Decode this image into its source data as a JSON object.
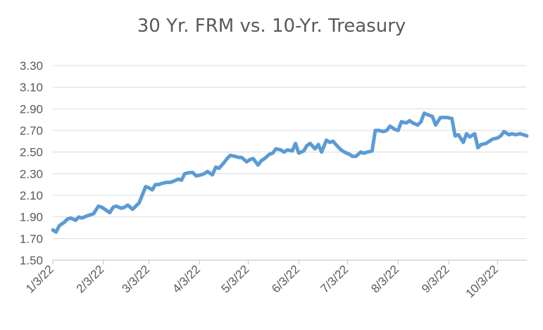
{
  "chart_data": {
    "type": "line",
    "title": "30 Yr. FRM vs. 10-Yr. Treasury",
    "xlabel": "",
    "ylabel": "",
    "ylim": [
      1.5,
      3.3
    ],
    "ytick_step": 0.2,
    "y_ticks": [
      "1.50",
      "1.70",
      "1.90",
      "2.10",
      "2.30",
      "2.50",
      "2.70",
      "2.90",
      "3.10",
      "3.30"
    ],
    "x_ticks": [
      "1/3/22",
      "2/3/22",
      "3/3/22",
      "4/3/22",
      "5/3/22",
      "6/3/22",
      "7/3/22",
      "8/3/22",
      "9/3/22",
      "10/3/22"
    ],
    "x_range": [
      "2022-01-03",
      "2022-10-21"
    ],
    "grid": "horizontal",
    "legend": "none",
    "series": [
      {
        "color": "#5B9BD5",
        "points": [
          [
            "2022-01-03",
            1.78
          ],
          [
            "2022-01-05",
            1.76
          ],
          [
            "2022-01-07",
            1.82
          ],
          [
            "2022-01-10",
            1.85
          ],
          [
            "2022-01-12",
            1.88
          ],
          [
            "2022-01-14",
            1.89
          ],
          [
            "2022-01-17",
            1.87
          ],
          [
            "2022-01-19",
            1.9
          ],
          [
            "2022-01-21",
            1.89
          ],
          [
            "2022-01-24",
            1.91
          ],
          [
            "2022-01-26",
            1.92
          ],
          [
            "2022-01-28",
            1.93
          ],
          [
            "2022-01-31",
            2.0
          ],
          [
            "2022-02-02",
            1.99
          ],
          [
            "2022-02-04",
            1.97
          ],
          [
            "2022-02-07",
            1.94
          ],
          [
            "2022-02-09",
            1.99
          ],
          [
            "2022-02-11",
            2.0
          ],
          [
            "2022-02-14",
            1.98
          ],
          [
            "2022-02-16",
            1.99
          ],
          [
            "2022-02-18",
            2.01
          ],
          [
            "2022-02-21",
            1.97
          ],
          [
            "2022-02-23",
            2.0
          ],
          [
            "2022-02-25",
            2.03
          ],
          [
            "2022-03-01",
            2.18
          ],
          [
            "2022-03-03",
            2.17
          ],
          [
            "2022-03-05",
            2.15
          ],
          [
            "2022-03-07",
            2.2
          ],
          [
            "2022-03-09",
            2.2
          ],
          [
            "2022-03-11",
            2.21
          ],
          [
            "2022-03-14",
            2.22
          ],
          [
            "2022-03-16",
            2.22
          ],
          [
            "2022-03-18",
            2.23
          ],
          [
            "2022-03-21",
            2.25
          ],
          [
            "2022-03-23",
            2.24
          ],
          [
            "2022-03-25",
            2.3
          ],
          [
            "2022-03-28",
            2.31
          ],
          [
            "2022-03-30",
            2.31
          ],
          [
            "2022-04-01",
            2.28
          ],
          [
            "2022-04-04",
            2.29
          ],
          [
            "2022-04-06",
            2.3
          ],
          [
            "2022-04-08",
            2.32
          ],
          [
            "2022-04-11",
            2.29
          ],
          [
            "2022-04-13",
            2.36
          ],
          [
            "2022-04-15",
            2.35
          ],
          [
            "2022-04-18",
            2.4
          ],
          [
            "2022-04-20",
            2.44
          ],
          [
            "2022-04-22",
            2.47
          ],
          [
            "2022-04-25",
            2.46
          ],
          [
            "2022-04-27",
            2.45
          ],
          [
            "2022-04-29",
            2.45
          ],
          [
            "2022-05-02",
            2.41
          ],
          [
            "2022-05-04",
            2.43
          ],
          [
            "2022-05-06",
            2.44
          ],
          [
            "2022-05-09",
            2.38
          ],
          [
            "2022-05-11",
            2.42
          ],
          [
            "2022-05-13",
            2.44
          ],
          [
            "2022-05-16",
            2.48
          ],
          [
            "2022-05-18",
            2.49
          ],
          [
            "2022-05-20",
            2.53
          ],
          [
            "2022-05-23",
            2.52
          ],
          [
            "2022-05-25",
            2.5
          ],
          [
            "2022-05-27",
            2.52
          ],
          [
            "2022-05-30",
            2.51
          ],
          [
            "2022-06-01",
            2.58
          ],
          [
            "2022-06-03",
            2.49
          ],
          [
            "2022-06-06",
            2.51
          ],
          [
            "2022-06-08",
            2.56
          ],
          [
            "2022-06-10",
            2.58
          ],
          [
            "2022-06-13",
            2.53
          ],
          [
            "2022-06-15",
            2.57
          ],
          [
            "2022-06-17",
            2.5
          ],
          [
            "2022-06-20",
            2.61
          ],
          [
            "2022-06-22",
            2.59
          ],
          [
            "2022-06-24",
            2.6
          ],
          [
            "2022-06-27",
            2.55
          ],
          [
            "2022-06-29",
            2.52
          ],
          [
            "2022-07-01",
            2.5
          ],
          [
            "2022-07-04",
            2.48
          ],
          [
            "2022-07-06",
            2.46
          ],
          [
            "2022-07-08",
            2.46
          ],
          [
            "2022-07-11",
            2.5
          ],
          [
            "2022-07-13",
            2.49
          ],
          [
            "2022-07-15",
            2.5
          ],
          [
            "2022-07-18",
            2.51
          ],
          [
            "2022-07-20",
            2.7
          ],
          [
            "2022-07-22",
            2.7
          ],
          [
            "2022-07-25",
            2.69
          ],
          [
            "2022-07-27",
            2.7
          ],
          [
            "2022-07-29",
            2.74
          ],
          [
            "2022-08-01",
            2.71
          ],
          [
            "2022-08-03",
            2.7
          ],
          [
            "2022-08-05",
            2.78
          ],
          [
            "2022-08-08",
            2.77
          ],
          [
            "2022-08-10",
            2.79
          ],
          [
            "2022-08-12",
            2.77
          ],
          [
            "2022-08-15",
            2.75
          ],
          [
            "2022-08-17",
            2.78
          ],
          [
            "2022-08-19",
            2.86
          ],
          [
            "2022-08-22",
            2.84
          ],
          [
            "2022-08-24",
            2.83
          ],
          [
            "2022-08-26",
            2.75
          ],
          [
            "2022-08-29",
            2.82
          ],
          [
            "2022-08-31",
            2.82
          ],
          [
            "2022-09-02",
            2.82
          ],
          [
            "2022-09-05",
            2.81
          ],
          [
            "2022-09-07",
            2.65
          ],
          [
            "2022-09-09",
            2.66
          ],
          [
            "2022-09-12",
            2.59
          ],
          [
            "2022-09-14",
            2.67
          ],
          [
            "2022-09-16",
            2.64
          ],
          [
            "2022-09-19",
            2.67
          ],
          [
            "2022-09-21",
            2.54
          ],
          [
            "2022-09-23",
            2.57
          ],
          [
            "2022-09-26",
            2.58
          ],
          [
            "2022-09-28",
            2.6
          ],
          [
            "2022-09-30",
            2.62
          ],
          [
            "2022-10-03",
            2.63
          ],
          [
            "2022-10-05",
            2.65
          ],
          [
            "2022-10-07",
            2.69
          ],
          [
            "2022-10-10",
            2.66
          ],
          [
            "2022-10-12",
            2.67
          ],
          [
            "2022-10-14",
            2.66
          ],
          [
            "2022-10-17",
            2.67
          ],
          [
            "2022-10-19",
            2.66
          ],
          [
            "2022-10-21",
            2.65
          ]
        ]
      }
    ]
  }
}
